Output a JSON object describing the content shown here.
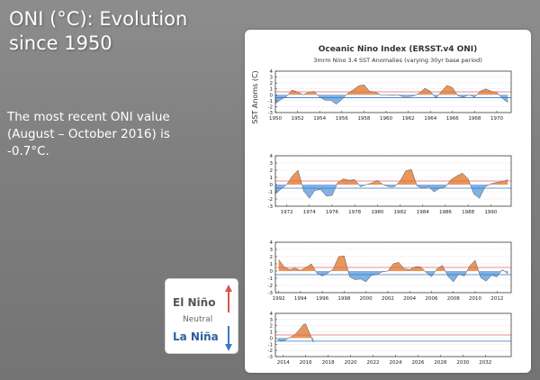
{
  "slide": {
    "title_lines": [
      "ONI (°C): Evolution",
      "since 1950"
    ],
    "body_lines": [
      "The most recent ONI value",
      "(August – October 2016) is",
      "-0.7°C."
    ]
  },
  "legend": {
    "el_nino": "El Niño",
    "neutral": "Neutral",
    "la_nina": "La Niña",
    "colors": {
      "el_nino": "#d9534f",
      "la_nina": "#3a78c2"
    }
  },
  "chart_data": {
    "type": "area",
    "title": "Oceanic Nino Index (ERSST.v4 ONI)",
    "subtitle": "3mrm Nino 3.4 SST Anomalies (varying 30yr base period)",
    "ylabel": "SST Anoms (C)",
    "ylim": [
      -3,
      4
    ],
    "yticks": [
      -3,
      -2,
      -1,
      0,
      1,
      2,
      3,
      4
    ],
    "thresholds": [
      0.5,
      -0.5
    ],
    "colors": {
      "positive": "#e8965a",
      "negative": "#7fb2e5",
      "upper_line": "#e06666",
      "lower_line": "#3a78c2"
    },
    "panels": [
      {
        "xlim": [
          1950,
          1971.3
        ],
        "xtick_labels": [
          "1950",
          "1952",
          "1954",
          "1956",
          "1958",
          "1960",
          "1962",
          "1964",
          "1966",
          "1968",
          "1970"
        ],
        "x": [
          1950.0,
          1950.5,
          1951.0,
          1951.5,
          1952.0,
          1952.5,
          1953.0,
          1953.5,
          1954.0,
          1954.5,
          1955.0,
          1955.5,
          1956.0,
          1956.5,
          1957.0,
          1957.5,
          1958.0,
          1958.5,
          1959.0,
          1959.5,
          1960.0,
          1960.5,
          1961.0,
          1961.5,
          1962.0,
          1962.5,
          1963.0,
          1963.5,
          1964.0,
          1964.5,
          1965.0,
          1965.5,
          1966.0,
          1966.5,
          1967.0,
          1967.5,
          1968.0,
          1968.5,
          1969.0,
          1969.5,
          1970.0,
          1970.5,
          1971.0
        ],
        "y": [
          -1.5,
          -0.8,
          -0.3,
          0.8,
          0.5,
          0.0,
          0.4,
          0.6,
          -0.4,
          -0.9,
          -0.9,
          -1.6,
          -0.8,
          0.2,
          0.8,
          1.5,
          1.7,
          0.6,
          0.5,
          0.0,
          0.0,
          -0.1,
          0.0,
          -0.3,
          -0.3,
          -0.2,
          0.3,
          1.1,
          0.6,
          -0.6,
          0.6,
          1.6,
          1.2,
          -0.2,
          -0.4,
          0.0,
          -0.4,
          0.6,
          1.0,
          0.6,
          0.4,
          -0.6,
          -1.3
        ]
      },
      {
        "xlim": [
          1971,
          1991.8
        ],
        "xtick_labels": [
          "1972",
          "1974",
          "1976",
          "1978",
          "1980",
          "1982",
          "1984",
          "1986",
          "1988",
          "1990"
        ],
        "x": [
          1971.0,
          1971.5,
          1972.0,
          1972.5,
          1973.0,
          1973.5,
          1974.0,
          1974.5,
          1975.0,
          1975.5,
          1976.0,
          1976.5,
          1977.0,
          1977.5,
          1978.0,
          1978.5,
          1979.0,
          1979.5,
          1980.0,
          1980.5,
          1981.0,
          1981.5,
          1982.0,
          1982.5,
          1983.0,
          1983.5,
          1984.0,
          1984.5,
          1985.0,
          1985.5,
          1986.0,
          1986.5,
          1987.0,
          1987.5,
          1988.0,
          1988.5,
          1989.0,
          1989.5,
          1990.0,
          1990.5,
          1991.0,
          1991.5
        ],
        "y": [
          -1.3,
          -0.6,
          0.0,
          1.2,
          2.0,
          -0.9,
          -1.9,
          -0.8,
          -0.7,
          -1.6,
          -1.5,
          0.3,
          0.8,
          0.6,
          0.7,
          -0.3,
          0.0,
          0.2,
          0.6,
          0.0,
          -0.3,
          -0.3,
          0.5,
          1.9,
          2.1,
          -0.2,
          -0.5,
          -0.3,
          -1.0,
          -0.5,
          -0.3,
          0.7,
          1.2,
          1.6,
          0.8,
          -1.3,
          -1.9,
          -0.3,
          0.1,
          0.3,
          0.4,
          0.7
        ]
      },
      {
        "xlim": [
          1991.7,
          2013.3
        ],
        "xtick_labels": [
          "1992",
          "1994",
          "1996",
          "1998",
          "2000",
          "2002",
          "2004",
          "2006",
          "2008",
          "2010",
          "2012"
        ],
        "x": [
          1992.0,
          1992.5,
          1993.0,
          1993.5,
          1994.0,
          1994.5,
          1995.0,
          1995.5,
          1996.0,
          1996.5,
          1997.0,
          1997.5,
          1998.0,
          1998.5,
          1999.0,
          1999.5,
          2000.0,
          2000.5,
          2001.0,
          2001.5,
          2002.0,
          2002.5,
          2003.0,
          2003.5,
          2004.0,
          2004.5,
          2005.0,
          2005.5,
          2006.0,
          2006.5,
          2007.0,
          2007.5,
          2008.0,
          2008.5,
          2009.0,
          2009.5,
          2010.0,
          2010.5,
          2011.0,
          2011.5,
          2012.0,
          2012.5,
          2013.0
        ],
        "y": [
          1.6,
          0.6,
          0.2,
          0.4,
          0.1,
          0.5,
          1.0,
          -0.3,
          -0.7,
          -0.3,
          0.3,
          2.0,
          2.1,
          -0.8,
          -1.2,
          -1.1,
          -1.5,
          -0.6,
          -0.5,
          -0.1,
          0.0,
          1.0,
          1.2,
          0.3,
          0.2,
          0.6,
          0.6,
          -0.2,
          -0.8,
          0.3,
          0.8,
          -0.7,
          -1.5,
          -0.4,
          -0.7,
          0.7,
          1.5,
          -0.9,
          -1.4,
          -0.6,
          -0.8,
          0.2,
          -0.4
        ]
      },
      {
        "xlim": [
          2013.3,
          2034.3
        ],
        "xtick_labels": [
          "2014",
          "2016",
          "2018",
          "2020",
          "2022",
          "2024",
          "2026",
          "2028",
          "2030",
          "2032"
        ],
        "x": [
          2013.5,
          2014.0,
          2014.5,
          2015.0,
          2015.5,
          2015.8,
          2016.0,
          2016.2,
          2016.4,
          2016.6,
          2016.7
        ],
        "y": [
          -0.3,
          -0.5,
          0.0,
          0.5,
          1.5,
          2.2,
          2.3,
          1.4,
          0.6,
          -0.4,
          -0.7
        ]
      }
    ]
  }
}
